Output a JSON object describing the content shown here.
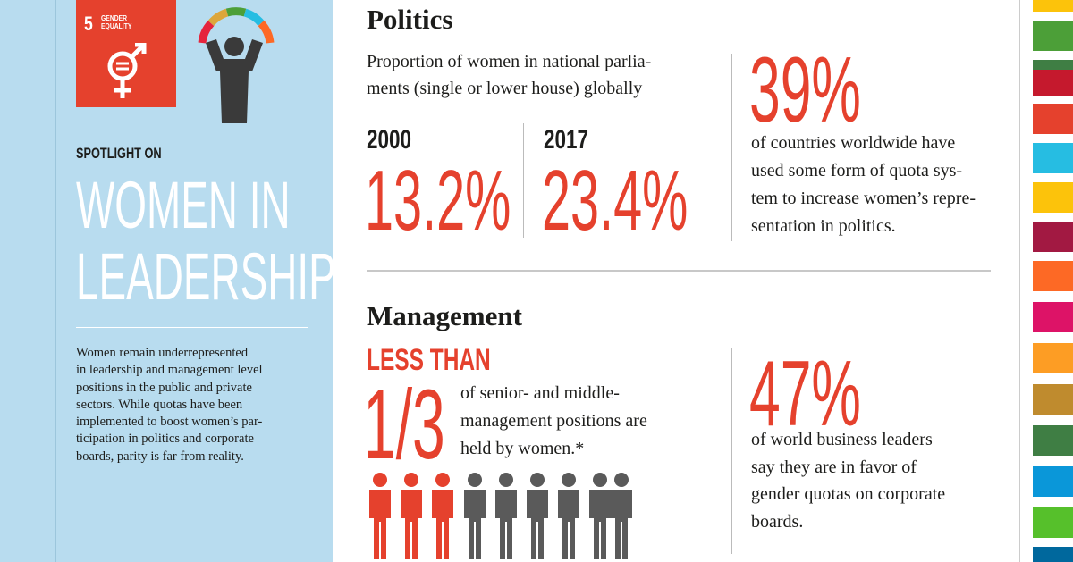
{
  "sdg_badge": {
    "number": "5",
    "label_lines": [
      "GENDER",
      "EQUALITY"
    ]
  },
  "sidebar": {
    "kicker": "SPOTLIGHT ON",
    "title_lines": [
      "WOMEN IN",
      "LEADERSHIP"
    ],
    "body_lines": [
      "Women remain underrepresented",
      "in leadership and management level",
      "positions in the public and private",
      "sectors. While quotas have been",
      "implemented to boost women’s par-",
      "ticipation in politics and corporate",
      "boards, parity is far from reality."
    ]
  },
  "politics": {
    "heading": "Politics",
    "description_lines": [
      "Proportion of women in national parlia-",
      "ments (single or lower house) globally"
    ],
    "stats": [
      {
        "year": "2000",
        "value": "13.2%"
      },
      {
        "year": "2017",
        "value": "23.4%"
      }
    ],
    "callout": {
      "value": "39%",
      "text_lines": [
        "of countries worldwide have",
        "used some form of quota sys-",
        "tem to increase women’s repre-",
        "sentation in politics."
      ]
    }
  },
  "management": {
    "heading": "Management",
    "qualifier": "LESS THAN",
    "fraction": "1/3",
    "text_lines": [
      "of senior- and middle-",
      "management positions are",
      "held by women.*"
    ],
    "callout": {
      "value": "47%",
      "text_lines": [
        "of world business leaders",
        "say they are in favor of",
        "gender quotas on corporate",
        "boards."
      ]
    }
  }
}
